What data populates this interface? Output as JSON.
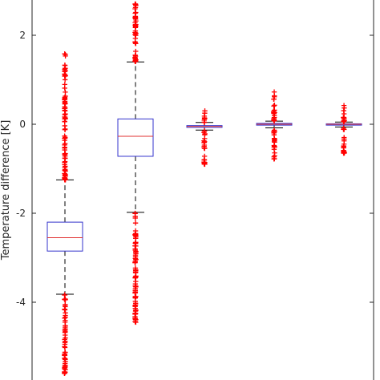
{
  "chart_data": {
    "type": "boxplot",
    "title": "",
    "xlabel": "",
    "ylabel": "Temperature difference [K]",
    "ylim": [
      -5.8,
      2.8
    ],
    "yticks": [
      2,
      0,
      -2,
      -4
    ],
    "ytick_labels": [
      "2",
      "0",
      "-2",
      "-4"
    ],
    "grid": false,
    "colors": {
      "box": "#3333cc",
      "median": "#e03030",
      "whisker": "#000000",
      "outlier": "#ff0000"
    },
    "boxes": [
      {
        "q1": -2.85,
        "median": -2.55,
        "q3": -2.2,
        "whisker_low": -3.82,
        "whisker_high": -1.25,
        "outlier_ranges": [
          [
            -1.25,
            1.6
          ],
          [
            -5.6,
            -3.82
          ]
        ]
      },
      {
        "q1": -0.72,
        "median": -0.27,
        "q3": 0.12,
        "whisker_low": -1.98,
        "whisker_high": 1.4,
        "outlier_ranges": [
          [
            1.4,
            2.8
          ],
          [
            -4.45,
            -1.98
          ]
        ]
      },
      {
        "q1": -0.07,
        "median": -0.05,
        "q3": -0.03,
        "whisker_low": -0.13,
        "whisker_high": 0.04,
        "outlier_ranges": [
          [
            0.04,
            0.35
          ],
          [
            -0.9,
            -0.13
          ]
        ]
      },
      {
        "q1": -0.02,
        "median": 0.0,
        "q3": 0.02,
        "whisker_low": -0.08,
        "whisker_high": 0.07,
        "outlier_ranges": [
          [
            0.07,
            0.73
          ],
          [
            -0.78,
            -0.08
          ]
        ]
      },
      {
        "q1": -0.02,
        "median": 0.0,
        "q3": 0.01,
        "whisker_low": -0.06,
        "whisker_high": 0.05,
        "outlier_ranges": [
          [
            0.05,
            0.5
          ],
          [
            -0.65,
            -0.06
          ]
        ]
      }
    ]
  }
}
